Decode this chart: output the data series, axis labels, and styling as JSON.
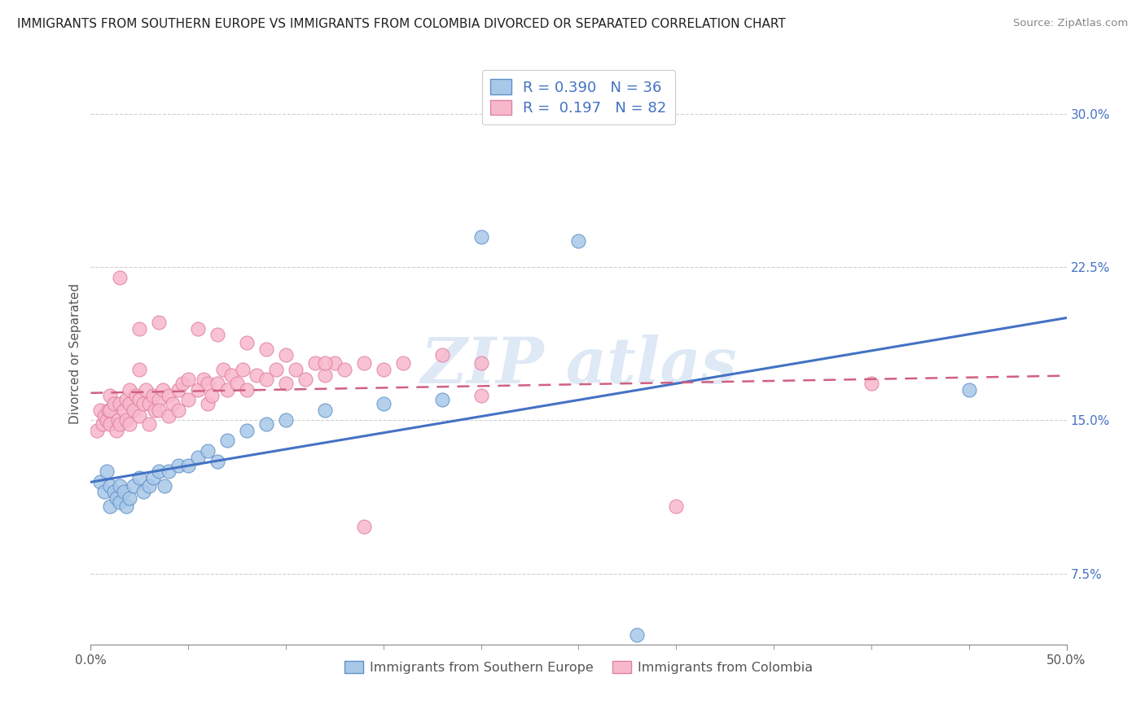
{
  "title": "IMMIGRANTS FROM SOUTHERN EUROPE VS IMMIGRANTS FROM COLOMBIA DIVORCED OR SEPARATED CORRELATION CHART",
  "source": "Source: ZipAtlas.com",
  "ylabel": "Divorced or Separated",
  "xmin": 0.0,
  "xmax": 0.5,
  "ymin": 0.04,
  "ymax": 0.325,
  "yticks": [
    0.075,
    0.15,
    0.225,
    0.3
  ],
  "ytick_labels": [
    "7.5%",
    "15.0%",
    "22.5%",
    "30.0%"
  ],
  "xticks_major": [
    0.0,
    0.5
  ],
  "xtick_labels_major": [
    "0.0%",
    "50.0%"
  ],
  "xticks_minor": [
    0.05,
    0.1,
    0.15,
    0.2,
    0.25,
    0.3,
    0.35,
    0.4,
    0.45
  ],
  "series1_name": "Immigrants from Southern Europe",
  "series1_R": 0.39,
  "series1_N": 36,
  "series1_color": "#a8c8e8",
  "series1_edge_color": "#6090c8",
  "series1_line_color": "#4472c4",
  "series2_name": "Immigrants from Colombia",
  "series2_R": 0.197,
  "series2_N": 82,
  "series2_color": "#f8b8cc",
  "series2_edge_color": "#e080a0",
  "series2_line_color": "#d06080",
  "background_color": "#ffffff",
  "grid_color": "#cccccc",
  "text_color": "#4472c4",
  "series1_x": [
    0.005,
    0.007,
    0.008,
    0.01,
    0.01,
    0.012,
    0.013,
    0.015,
    0.015,
    0.017,
    0.018,
    0.02,
    0.022,
    0.025,
    0.027,
    0.03,
    0.032,
    0.035,
    0.038,
    0.04,
    0.045,
    0.05,
    0.055,
    0.06,
    0.065,
    0.07,
    0.08,
    0.09,
    0.1,
    0.12,
    0.15,
    0.18,
    0.2,
    0.25,
    0.45,
    0.28
  ],
  "series1_y": [
    0.12,
    0.115,
    0.125,
    0.118,
    0.108,
    0.115,
    0.112,
    0.118,
    0.11,
    0.115,
    0.108,
    0.112,
    0.118,
    0.122,
    0.115,
    0.118,
    0.122,
    0.125,
    0.118,
    0.125,
    0.128,
    0.128,
    0.132,
    0.135,
    0.13,
    0.14,
    0.145,
    0.148,
    0.15,
    0.155,
    0.158,
    0.16,
    0.24,
    0.238,
    0.165,
    0.045
  ],
  "series2_x": [
    0.003,
    0.005,
    0.006,
    0.007,
    0.008,
    0.009,
    0.01,
    0.01,
    0.01,
    0.012,
    0.013,
    0.014,
    0.015,
    0.015,
    0.017,
    0.018,
    0.018,
    0.02,
    0.02,
    0.02,
    0.022,
    0.023,
    0.025,
    0.025,
    0.025,
    0.027,
    0.028,
    0.03,
    0.03,
    0.032,
    0.033,
    0.035,
    0.035,
    0.037,
    0.04,
    0.04,
    0.042,
    0.045,
    0.045,
    0.047,
    0.05,
    0.05,
    0.055,
    0.058,
    0.06,
    0.06,
    0.062,
    0.065,
    0.068,
    0.07,
    0.072,
    0.075,
    0.078,
    0.08,
    0.085,
    0.09,
    0.095,
    0.1,
    0.105,
    0.11,
    0.115,
    0.12,
    0.125,
    0.13,
    0.14,
    0.15,
    0.16,
    0.18,
    0.2,
    0.015,
    0.025,
    0.035,
    0.2,
    0.3,
    0.4,
    0.055,
    0.065,
    0.08,
    0.09,
    0.1,
    0.12,
    0.14
  ],
  "series2_y": [
    0.145,
    0.155,
    0.148,
    0.152,
    0.15,
    0.155,
    0.148,
    0.155,
    0.162,
    0.158,
    0.145,
    0.15,
    0.148,
    0.158,
    0.155,
    0.16,
    0.15,
    0.148,
    0.158,
    0.165,
    0.155,
    0.162,
    0.152,
    0.16,
    0.175,
    0.158,
    0.165,
    0.148,
    0.158,
    0.162,
    0.155,
    0.16,
    0.155,
    0.165,
    0.152,
    0.162,
    0.158,
    0.165,
    0.155,
    0.168,
    0.16,
    0.17,
    0.165,
    0.17,
    0.158,
    0.168,
    0.162,
    0.168,
    0.175,
    0.165,
    0.172,
    0.168,
    0.175,
    0.165,
    0.172,
    0.17,
    0.175,
    0.168,
    0.175,
    0.17,
    0.178,
    0.172,
    0.178,
    0.175,
    0.178,
    0.175,
    0.178,
    0.182,
    0.178,
    0.22,
    0.195,
    0.198,
    0.162,
    0.108,
    0.168,
    0.195,
    0.192,
    0.188,
    0.185,
    0.182,
    0.178,
    0.098
  ]
}
